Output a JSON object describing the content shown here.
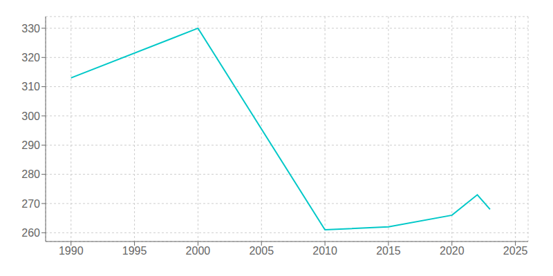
{
  "chart_data": {
    "type": "line",
    "x": [
      1990,
      2000,
      2010,
      2015,
      2020,
      2022,
      2023
    ],
    "values": [
      313,
      330,
      261,
      262,
      266,
      273,
      268
    ],
    "color": "#00C8C8",
    "xlim": [
      1988,
      2026
    ],
    "ylim": [
      257,
      334
    ],
    "xticks": [
      1990,
      1995,
      2000,
      2005,
      2010,
      2015,
      2020,
      2025
    ],
    "yticks": [
      260,
      270,
      280,
      290,
      300,
      310,
      320,
      330
    ],
    "grid": true
  }
}
